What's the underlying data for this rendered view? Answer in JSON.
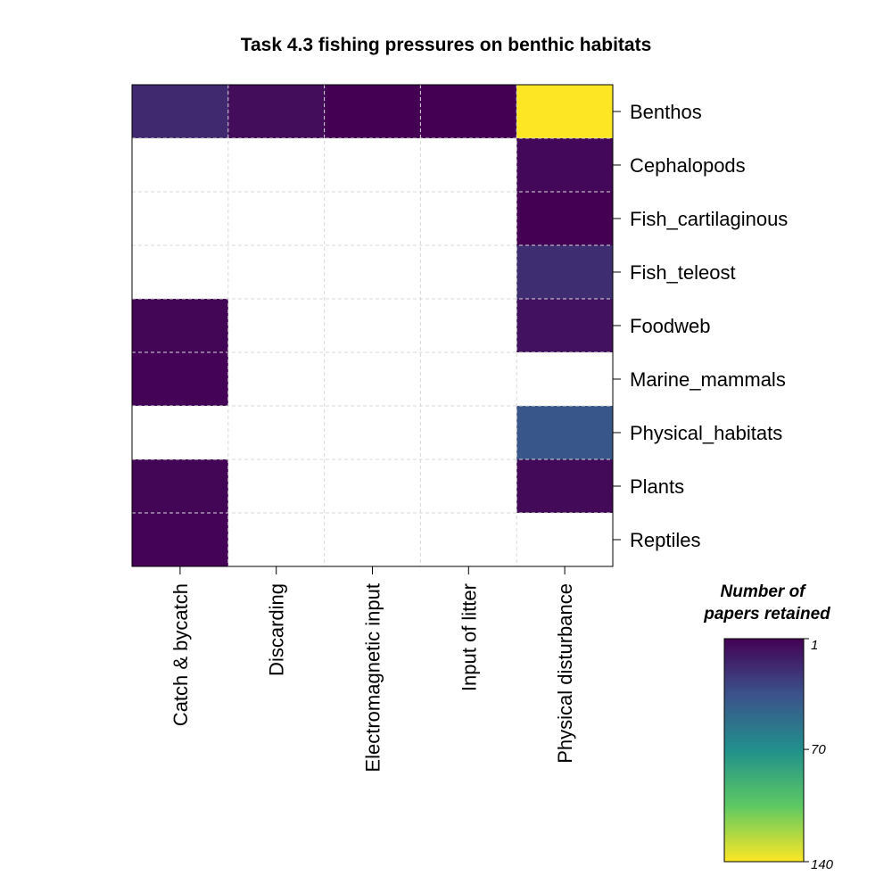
{
  "chart_data": {
    "type": "heatmap",
    "title": "Task 4.3 fishing pressures on benthic habitats",
    "x_categories": [
      "Catch & bycatch",
      "Discarding",
      "Electromagnetic input",
      "Input of litter",
      "Physical disturbance"
    ],
    "y_categories": [
      "Benthos",
      "Cephalopods",
      "Fish_cartilaginous",
      "Fish_teleost",
      "Foodweb",
      "Marine_mammals",
      "Physical_habitats",
      "Plants",
      "Reptiles"
    ],
    "values": [
      [
        18,
        6,
        1,
        1,
        140
      ],
      [
        null,
        null,
        null,
        null,
        4
      ],
      [
        null,
        null,
        null,
        null,
        1
      ],
      [
        null,
        null,
        null,
        null,
        20
      ],
      [
        3,
        null,
        null,
        null,
        8
      ],
      [
        2,
        null,
        null,
        null,
        null
      ],
      [
        null,
        null,
        null,
        null,
        38
      ],
      [
        3,
        null,
        null,
        null,
        5
      ],
      [
        2,
        null,
        null,
        null,
        null
      ]
    ],
    "colorbar": {
      "title_lines": [
        "Number of",
        "papers retained"
      ],
      "min": 1,
      "max": 140,
      "ticks": [
        "1",
        "70",
        "140"
      ],
      "colormap": "viridis-reversed"
    },
    "grid": true
  }
}
